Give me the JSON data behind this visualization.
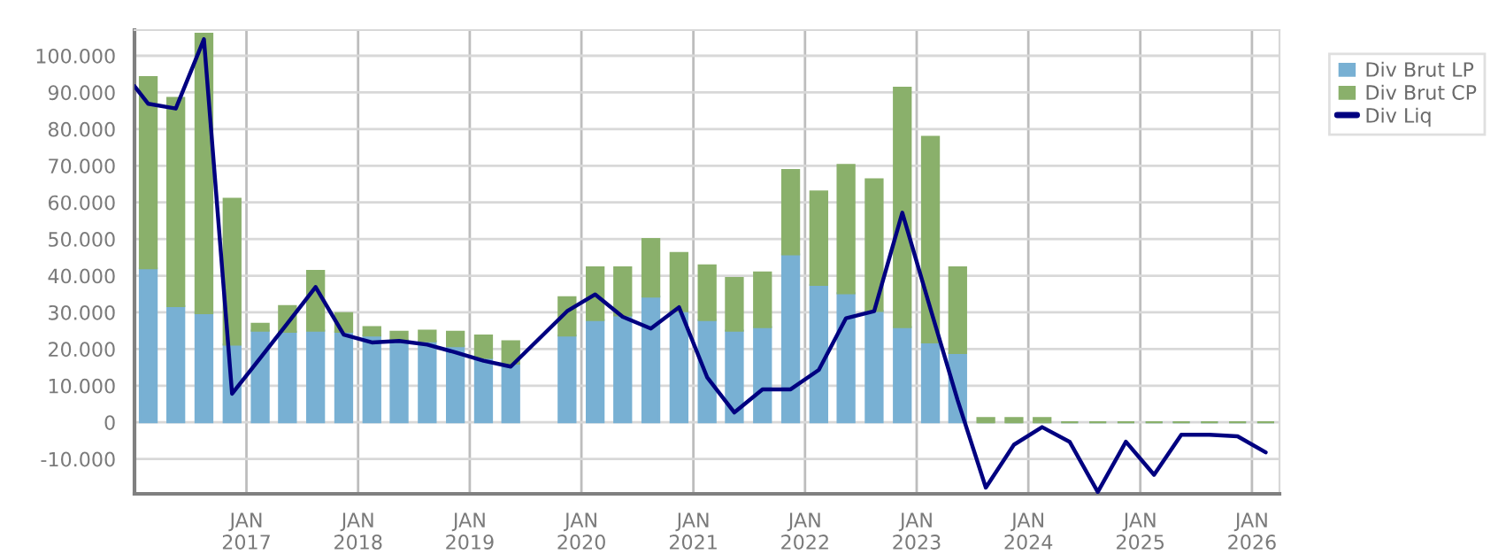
{
  "chart_data": {
    "type": "bar",
    "stacked": true,
    "x": [
      "2016-02-15",
      "2016-05-15",
      "2016-08-15",
      "2016-11-15",
      "2017-02-15",
      "2017-05-15",
      "2017-08-15",
      "2017-11-15",
      "2018-02-15",
      "2018-05-15",
      "2018-08-15",
      "2018-11-15",
      "2019-02-15",
      "2019-05-15",
      "2019-08-15",
      "2019-11-15",
      "2020-02-15",
      "2020-05-15",
      "2020-08-15",
      "2020-11-15",
      "2021-02-15",
      "2021-05-15",
      "2021-08-15",
      "2021-11-15",
      "2022-02-15",
      "2022-05-15",
      "2022-08-15",
      "2022-11-15",
      "2023-02-15",
      "2023-05-15",
      "2023-08-15",
      "2023-11-15",
      "2024-02-15",
      "2024-05-15",
      "2024-08-15",
      "2024-11-15",
      "2025-02-15",
      "2025-05-15",
      "2025-08-15",
      "2025-11-15",
      "2026-02-15"
    ],
    "series": [
      {
        "name": "Div Brut LP",
        "color": "#78b0d3",
        "values": [
          42000,
          31700,
          29800,
          21200,
          25000,
          24700,
          25000,
          24700,
          23700,
          22400,
          22100,
          20800,
          17600,
          16000,
          null,
          23700,
          27900,
          29200,
          34300,
          30300,
          27900,
          25000,
          26000,
          45800,
          37500,
          35200,
          30400,
          26000,
          21800,
          18900,
          0,
          0,
          0,
          0,
          0,
          0,
          0,
          0,
          0,
          0,
          0
        ]
      },
      {
        "name": "Div Brut CP",
        "color": "#8ab06b",
        "values": [
          52200,
          56800,
          76200,
          39800,
          1900,
          7000,
          16300,
          5100,
          2300,
          2300,
          2900,
          3900,
          6100,
          6100,
          null,
          10400,
          14400,
          13100,
          15700,
          15900,
          14900,
          14400,
          14900,
          23000,
          25500,
          35000,
          35900,
          65300,
          56100,
          23400,
          1200,
          1200,
          1200,
          0,
          0,
          0,
          0,
          0,
          0,
          0,
          0
        ]
      },
      {
        "name": "Div Liq",
        "type": "line",
        "color": "#000080",
        "x": [
          "2016-01-01",
          "2016-02-15",
          "2016-05-15",
          "2016-08-15",
          "2016-11-15",
          "2017-02-15",
          "2017-05-15",
          "2017-08-15",
          "2017-11-15",
          "2018-02-15",
          "2018-05-15",
          "2018-08-15",
          "2018-11-15",
          "2019-02-15",
          "2019-05-15",
          "2019-11-15",
          "2020-02-15",
          "2020-05-15",
          "2020-08-15",
          "2020-11-15",
          "2021-02-15",
          "2021-05-15",
          "2021-08-15",
          "2021-11-15",
          "2022-02-15",
          "2022-05-15",
          "2022-08-15",
          "2022-11-15",
          "2023-02-15",
          "2023-05-15",
          "2023-08-15",
          "2023-11-15",
          "2024-02-15",
          "2024-05-15",
          "2024-08-15",
          "2024-11-15",
          "2025-02-15",
          "2025-05-15",
          "2025-08-15",
          "2025-11-15",
          "2026-02-15"
        ],
        "values": [
          91700,
          86900,
          85600,
          104500,
          7800,
          17500,
          27000,
          36900,
          23900,
          21800,
          22200,
          21200,
          19100,
          16800,
          15200,
          30300,
          34900,
          28800,
          25600,
          31400,
          12300,
          2700,
          9000,
          9000,
          14300,
          28400,
          30300,
          57200,
          31000,
          6000,
          -17800,
          -6100,
          -1300,
          -5300,
          -19000,
          -5300,
          -14300,
          -3400,
          -3400,
          -3800,
          -8200
        ]
      }
    ],
    "xlim": [
      "2016-01-01",
      "2026-04-01"
    ],
    "xticks": [
      {
        "value": "2017-01-01",
        "label": "JAN\n2017"
      },
      {
        "value": "2018-01-01",
        "label": "JAN\n2018"
      },
      {
        "value": "2019-01-01",
        "label": "JAN\n2019"
      },
      {
        "value": "2020-01-01",
        "label": "JAN\n2020"
      },
      {
        "value": "2021-01-01",
        "label": "JAN\n2021"
      },
      {
        "value": "2022-01-01",
        "label": "JAN\n2022"
      },
      {
        "value": "2023-01-01",
        "label": "JAN\n2023"
      },
      {
        "value": "2024-01-01",
        "label": "JAN\n2024"
      },
      {
        "value": "2025-01-01",
        "label": "JAN\n2025"
      },
      {
        "value": "2026-01-01",
        "label": "JAN\n2026"
      }
    ],
    "ylim": [
      -19500,
      107000
    ],
    "yticks": [
      {
        "value": -10000,
        "label": "-10.000"
      },
      {
        "value": 0,
        "label": "0"
      },
      {
        "value": 10000,
        "label": "10.000"
      },
      {
        "value": 20000,
        "label": "20.000"
      },
      {
        "value": 30000,
        "label": "30.000"
      },
      {
        "value": 40000,
        "label": "40.000"
      },
      {
        "value": 50000,
        "label": "50.000"
      },
      {
        "value": 60000,
        "label": "60.000"
      },
      {
        "value": 70000,
        "label": "70.000"
      },
      {
        "value": 80000,
        "label": "80.000"
      },
      {
        "value": 90000,
        "label": "90.000"
      },
      {
        "value": 100000,
        "label": "100.000"
      }
    ],
    "grid": true,
    "legend": "top right",
    "marker": "none",
    "line_style": "solid"
  }
}
